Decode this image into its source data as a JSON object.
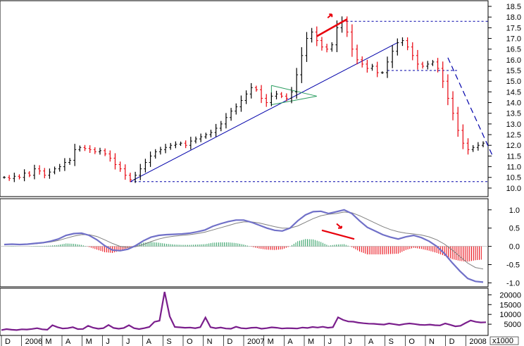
{
  "chart_data": [
    {
      "type": "line",
      "panel": "price",
      "title": "",
      "xlabel": "",
      "ylabel": "",
      "ylim": [
        9.7,
        18.6
      ],
      "y_ticks": [
        "18.5",
        "18.0",
        "17.5",
        "17.0",
        "16.5",
        "16.0",
        "15.5",
        "15.0",
        "14.5",
        "14.0",
        "13.5",
        "13.0",
        "12.5",
        "12.0",
        "11.5",
        "11.0",
        "10.5",
        "10.0"
      ],
      "grid": false,
      "months": [
        "D",
        "2006",
        "M",
        "A",
        "M",
        "J",
        "J",
        "A",
        "S",
        "O",
        "N",
        "D",
        "2007",
        "M",
        "A",
        "M",
        "J",
        "J",
        "A",
        "S",
        "O",
        "N",
        "D",
        "2008"
      ],
      "series": [
        {
          "values": [
            10.5,
            10.45,
            10.55,
            10.5,
            10.7,
            10.6,
            10.9,
            10.8,
            10.6,
            10.75,
            10.9,
            11.0,
            11.2,
            11.3,
            11.8,
            11.9,
            11.85,
            11.8,
            11.7,
            11.75,
            11.6,
            11.4,
            11.1,
            10.9,
            10.6,
            10.4,
            10.6,
            10.9,
            11.2,
            11.5,
            11.7,
            11.8,
            11.9,
            12.0,
            12.05,
            12.1,
            12.0,
            12.2,
            12.3,
            12.4,
            12.5,
            12.6,
            12.8,
            13.0,
            13.3,
            13.6,
            13.8,
            14.1,
            14.4,
            14.7,
            14.6,
            14.2,
            14.0,
            14.3,
            14.4,
            14.3,
            14.2,
            14.5,
            15.3,
            16.2,
            17.0,
            17.3,
            16.9,
            16.6,
            16.5,
            16.7,
            17.5,
            17.8,
            17.3,
            16.5,
            16.0,
            15.8,
            15.6,
            15.7,
            15.4,
            15.4,
            15.9,
            16.4,
            16.8,
            16.9,
            16.6,
            16.2,
            15.8,
            15.7,
            15.8,
            15.9,
            15.6,
            15.0,
            14.2,
            13.5,
            12.7,
            12.1,
            11.8,
            11.9,
            12.0,
            12.1
          ]
        }
      ],
      "annotations": {
        "support_level": 10.3,
        "resistance_level": 17.8,
        "mid_level": 15.5,
        "uptrend_start": [
          25,
          10.3
        ],
        "uptrend_end": [
          78,
          16.8
        ],
        "downtrend_start": [
          88,
          16.1
        ],
        "downtrend_end": [
          97,
          12.1
        ],
        "red_divergence_start": [
          62,
          17.1
        ],
        "red_divergence_end": [
          68,
          17.9
        ],
        "triangle_upper": [
          [
            53,
            14.8
          ],
          [
            62,
            14.3
          ]
        ],
        "triangle_lower": [
          [
            53,
            13.9
          ],
          [
            62,
            14.3
          ]
        ]
      }
    },
    {
      "type": "line",
      "panel": "macd",
      "ylim": [
        -1.05,
        1.15
      ],
      "y_ticks": [
        "1.0",
        "0.5",
        "0.0",
        "-0.5",
        "-1.0"
      ],
      "series": [
        {
          "values": [
            0.05,
            0.06,
            0.05,
            0.06,
            0.08,
            0.1,
            0.14,
            0.2,
            0.3,
            0.35,
            0.36,
            0.3,
            0.18,
            0.02,
            -0.1,
            -0.12,
            -0.08,
            0.02,
            0.15,
            0.25,
            0.3,
            0.32,
            0.33,
            0.34,
            0.36,
            0.4,
            0.45,
            0.55,
            0.62,
            0.68,
            0.72,
            0.72,
            0.66,
            0.58,
            0.5,
            0.44,
            0.42,
            0.5,
            0.7,
            0.86,
            0.95,
            0.96,
            0.9,
            0.95,
            1.0,
            0.9,
            0.7,
            0.52,
            0.42,
            0.32,
            0.25,
            0.2,
            0.26,
            0.3,
            0.24,
            0.14,
            0.0,
            -0.2,
            -0.45,
            -0.68,
            -0.88,
            -0.96,
            -0.98
          ]
        },
        {
          "values": [
            0.05,
            0.05,
            0.05,
            0.06,
            0.07,
            0.09,
            0.12,
            0.16,
            0.22,
            0.28,
            0.32,
            0.32,
            0.27,
            0.18,
            0.08,
            0.0,
            -0.03,
            -0.01,
            0.05,
            0.13,
            0.2,
            0.25,
            0.28,
            0.3,
            0.32,
            0.35,
            0.39,
            0.45,
            0.51,
            0.57,
            0.63,
            0.67,
            0.67,
            0.64,
            0.59,
            0.54,
            0.5,
            0.5,
            0.56,
            0.66,
            0.76,
            0.84,
            0.88,
            0.9,
            0.94,
            0.92,
            0.84,
            0.74,
            0.64,
            0.54,
            0.46,
            0.4,
            0.36,
            0.34,
            0.31,
            0.26,
            0.18,
            0.06,
            -0.1,
            -0.28,
            -0.46,
            -0.58,
            -0.62
          ]
        }
      ],
      "histogram": [
        0.0,
        0.01,
        0.0,
        0.0,
        0.01,
        0.01,
        0.02,
        0.04,
        0.08,
        0.07,
        0.04,
        -0.02,
        -0.09,
        -0.16,
        -0.18,
        -0.12,
        -0.05,
        0.03,
        0.1,
        0.12,
        0.1,
        0.07,
        0.05,
        0.04,
        0.04,
        0.05,
        0.06,
        0.1,
        0.11,
        0.11,
        0.09,
        0.05,
        -0.01,
        -0.06,
        -0.09,
        -0.1,
        -0.08,
        0.0,
        0.14,
        0.2,
        0.19,
        0.12,
        0.02,
        0.05,
        0.06,
        -0.02,
        -0.14,
        -0.22,
        -0.22,
        -0.22,
        -0.21,
        -0.2,
        -0.1,
        -0.04,
        -0.07,
        -0.12,
        -0.18,
        -0.26,
        -0.35,
        -0.4,
        -0.42,
        -0.38,
        -0.36
      ]
    },
    {
      "type": "line",
      "panel": "volume",
      "ylim": [
        0,
        23000
      ],
      "y_ticks": [
        "20000",
        "15000",
        "10000",
        "5000"
      ],
      "unit_label": "x1000",
      "series": [
        {
          "values": [
            2000,
            2500,
            2200,
            2000,
            2400,
            2300,
            2600,
            3000,
            2400,
            2200,
            4500,
            3500,
            2800,
            3000,
            3500,
            2500,
            2600,
            4200,
            3200,
            2700,
            3000,
            4600,
            3100,
            2700,
            3100,
            4500,
            3000,
            2500,
            3000,
            3600,
            6200,
            6800,
            21500,
            9000,
            3600,
            3400,
            3200,
            3300,
            3000,
            3500,
            8400,
            3500,
            3000,
            3300,
            2800,
            2700,
            3700,
            3000,
            2800,
            3200,
            3300,
            2700,
            3000,
            3400,
            3200,
            2800,
            3000,
            2900,
            2800,
            3300,
            3100,
            3600,
            3300,
            3700,
            3200,
            3500,
            8500,
            7200,
            6400,
            6300,
            5800,
            5500,
            5300,
            5200,
            5000,
            4800,
            5400,
            5000,
            4600,
            5100,
            5400,
            5100,
            4700,
            4600,
            4800,
            4500,
            4400,
            5400,
            4700,
            3900,
            4200,
            5600,
            6900,
            6200,
            5900,
            6000
          ]
        }
      ]
    }
  ],
  "colors": {
    "candle_up": "#000000",
    "candle_down": "#e8000b",
    "trendline": "#0000aa",
    "dashed": "#0000aa",
    "macd_line": "#7070c8",
    "signal_line": "#808080",
    "hist_pos": "#2a9d60",
    "hist_neg": "#e8000b",
    "volume_line": "#7a1e8c",
    "annotation": "#e8000b",
    "triangle": "#2a9d60"
  }
}
